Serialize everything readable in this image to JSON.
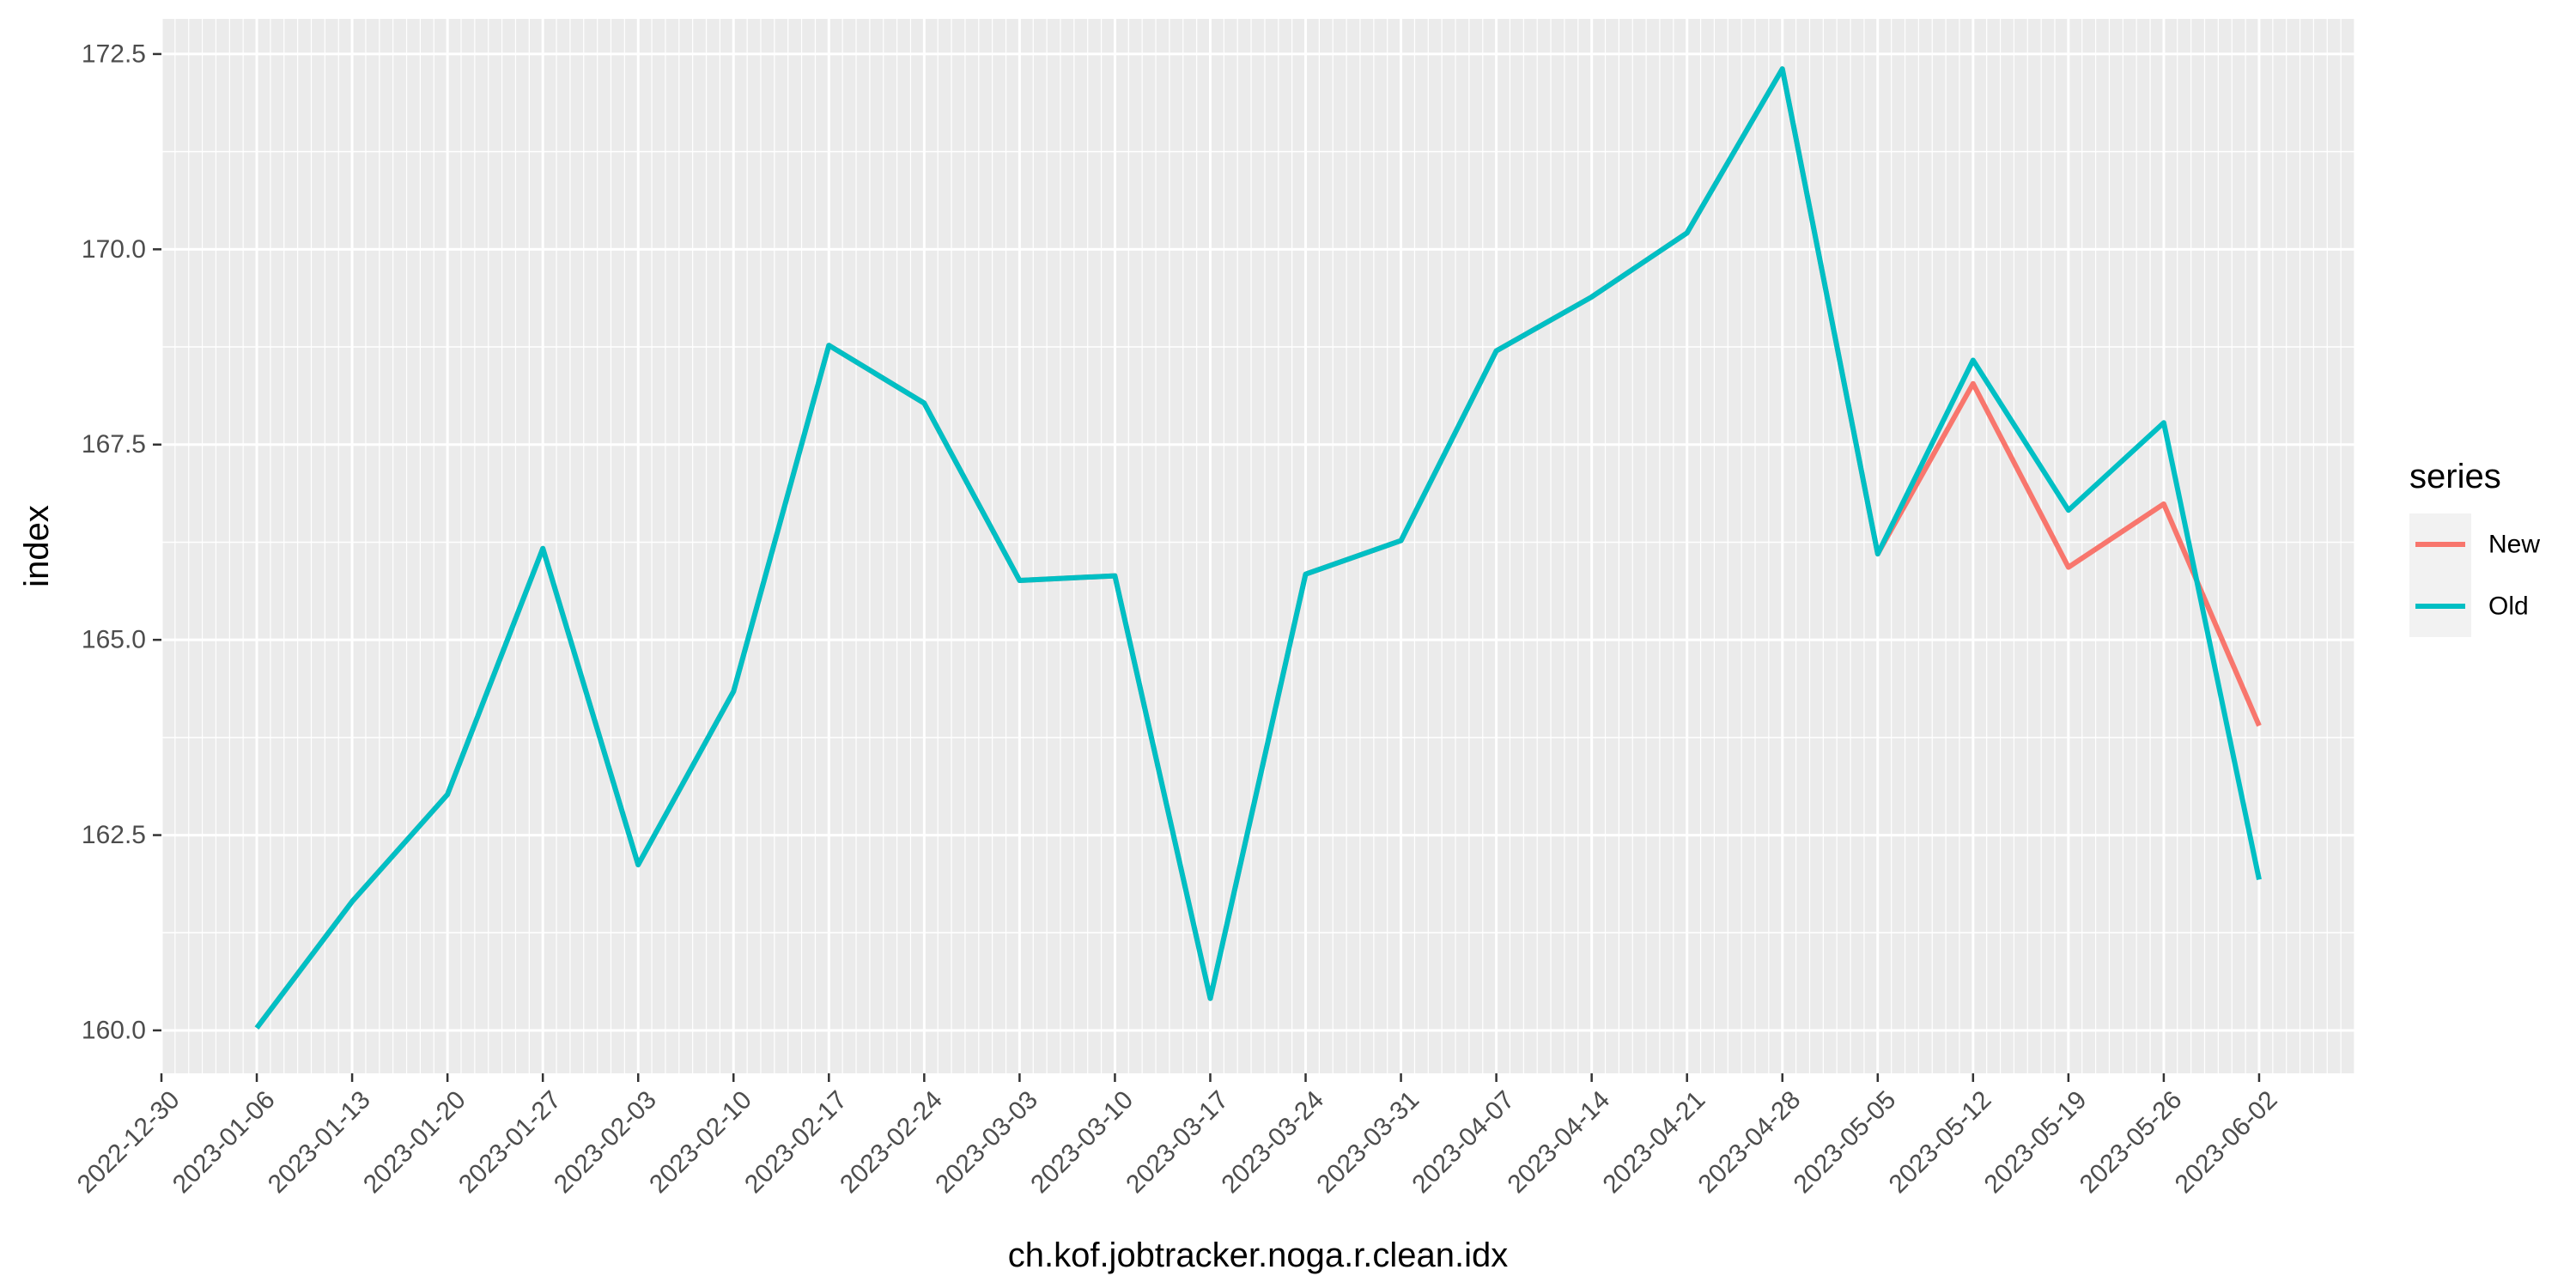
{
  "chart_data": {
    "type": "line",
    "xlabel": "ch.kof.jobtracker.noga.r.clean.idx",
    "ylabel": "index",
    "x_ticks": [
      "2022-12-30",
      "2023-01-06",
      "2023-01-13",
      "2023-01-20",
      "2023-01-27",
      "2023-02-03",
      "2023-02-10",
      "2023-02-17",
      "2023-02-24",
      "2023-03-03",
      "2023-03-10",
      "2023-03-17",
      "2023-03-24",
      "2023-03-31",
      "2023-04-07",
      "2023-04-14",
      "2023-04-21",
      "2023-04-28",
      "2023-05-05",
      "2023-05-12",
      "2023-05-19",
      "2023-05-26",
      "2023-06-02"
    ],
    "xlim": [
      "2022-12-30",
      "2023-06-09"
    ],
    "y_ticks": [
      "160.0",
      "162.5",
      "165.0",
      "167.5",
      "170.0",
      "172.5"
    ],
    "ylim": [
      159.45,
      172.95
    ],
    "grid": true,
    "legend": {
      "title": "series",
      "position": "right"
    },
    "x": [
      "2023-01-06",
      "2023-01-13",
      "2023-01-20",
      "2023-01-27",
      "2023-02-03",
      "2023-02-10",
      "2023-02-17",
      "2023-02-24",
      "2023-03-03",
      "2023-03-10",
      "2023-03-17",
      "2023-03-24",
      "2023-03-31",
      "2023-04-07",
      "2023-04-14",
      "2023-04-21",
      "2023-04-28",
      "2023-05-05",
      "2023-05-12",
      "2023-05-19",
      "2023-05-26",
      "2023-06-02"
    ],
    "series": [
      {
        "name": "New",
        "color": "#F8766D",
        "values": [
          160.03,
          161.65,
          163.02,
          166.17,
          162.12,
          164.34,
          168.77,
          168.03,
          165.76,
          165.82,
          160.41,
          165.84,
          166.27,
          168.7,
          169.39,
          170.21,
          172.31,
          166.1,
          168.28,
          165.93,
          166.74,
          163.9
        ]
      },
      {
        "name": "Old",
        "color": "#00BFC4",
        "values": [
          160.03,
          161.65,
          163.02,
          166.17,
          162.12,
          164.34,
          168.77,
          168.03,
          165.76,
          165.82,
          160.41,
          165.84,
          166.27,
          168.7,
          169.39,
          170.21,
          172.31,
          166.1,
          168.58,
          166.66,
          167.78,
          161.93
        ]
      }
    ]
  }
}
